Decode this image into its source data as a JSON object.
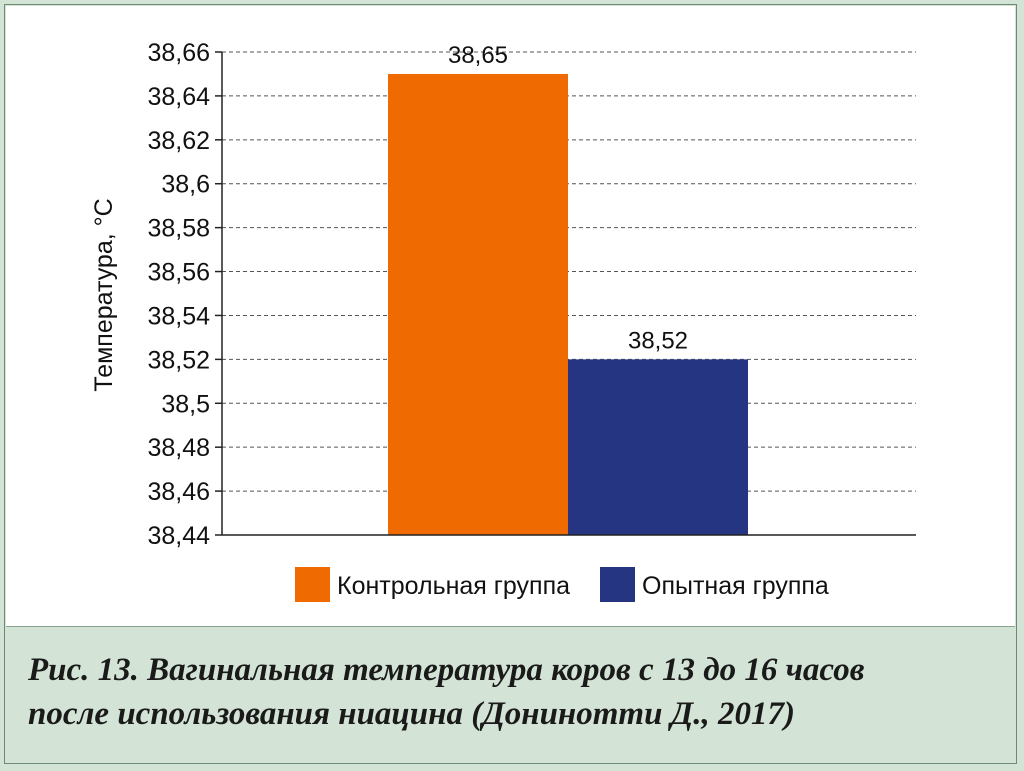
{
  "colors": {
    "control": "#ef6a00",
    "experimental": "#263582",
    "caption_bg": "#d3e4d6",
    "grid": "#555555"
  },
  "chart_data": {
    "type": "bar",
    "ylabel": "Температура, °С",
    "ylim": [
      38.44,
      38.66
    ],
    "yticks": [
      "38,66",
      "38,64",
      "38,62",
      "38,6",
      "38,58",
      "38,56",
      "38,54",
      "38,52",
      "38,5",
      "38,48",
      "38,46",
      "38,44"
    ],
    "ytick_values": [
      38.66,
      38.64,
      38.62,
      38.6,
      38.58,
      38.56,
      38.54,
      38.52,
      38.5,
      38.48,
      38.46,
      38.44
    ],
    "grid": "horizontal-dashed",
    "legend_position": "bottom",
    "series": [
      {
        "name": "Контрольная группа",
        "value": 38.65,
        "label": "38,65",
        "color": "#ef6a00"
      },
      {
        "name": "Опытная группа",
        "value": 38.52,
        "label": "38,52",
        "color": "#263582"
      }
    ]
  },
  "caption": {
    "line1": "Рис. 13. Вагинальная температура коров с 13 до 16 часов",
    "line2": "после использования ниацина  (Донинотти Д., 2017)"
  }
}
